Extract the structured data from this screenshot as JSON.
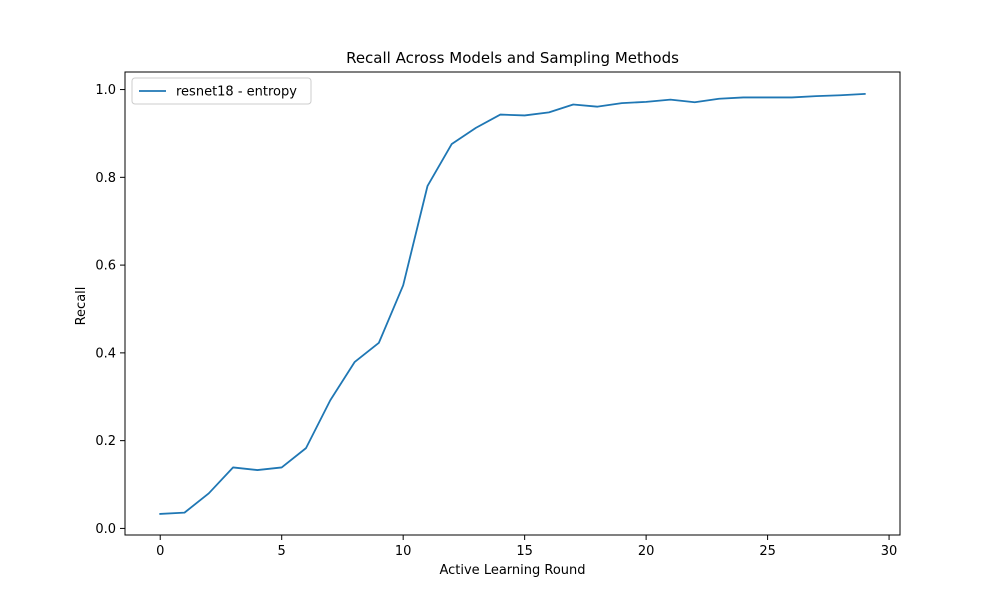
{
  "chart_data": {
    "type": "line",
    "title": "Recall Across Models and Sampling Methods",
    "xlabel": "Active Learning Round",
    "ylabel": "Recall",
    "xlim": [
      -1.45,
      30.45
    ],
    "ylim": [
      -0.015,
      1.04
    ],
    "xticks": [
      0,
      5,
      10,
      15,
      20,
      25,
      30
    ],
    "yticks": [
      0.0,
      0.2,
      0.4,
      0.6,
      0.8,
      1.0
    ],
    "grid": false,
    "legend_position": "top-left",
    "series": [
      {
        "name": "resnet18 - entropy",
        "color": "#1f77b4",
        "x": [
          0,
          1,
          2,
          3,
          4,
          5,
          6,
          7,
          8,
          9,
          10,
          11,
          12,
          13,
          14,
          15,
          16,
          17,
          18,
          19,
          20,
          21,
          22,
          23,
          24,
          25,
          26,
          27,
          28,
          29
        ],
        "y": [
          0.033,
          0.036,
          0.08,
          0.139,
          0.133,
          0.139,
          0.183,
          0.292,
          0.379,
          0.423,
          0.554,
          0.78,
          0.876,
          0.913,
          0.943,
          0.941,
          0.948,
          0.966,
          0.961,
          0.969,
          0.972,
          0.977,
          0.971,
          0.979,
          0.982,
          0.982,
          0.982,
          0.985,
          0.987,
          0.99
        ]
      }
    ]
  }
}
